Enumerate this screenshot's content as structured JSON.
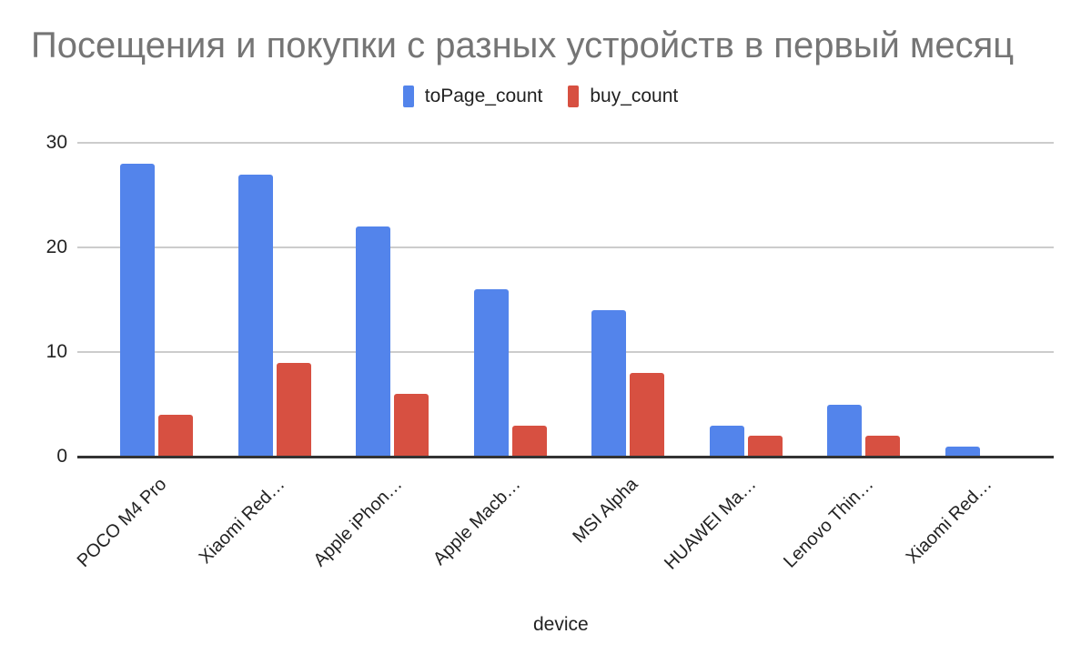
{
  "chart_data": {
    "type": "bar",
    "title": "Посещения и покупки с разных устройств в первый месяц",
    "xlabel": "device",
    "ylabel": "",
    "ylim": [
      0,
      30
    ],
    "yticks": [
      "0",
      "10",
      "20",
      "30"
    ],
    "grid": true,
    "legend_position": "top",
    "categories": [
      "POCO M4 Pro",
      "Xiaomi Red…",
      "Apple iPhon…",
      "Apple Macb…",
      "MSI Alpha",
      "HUAWEI Ma…",
      "Lenovo Thin…",
      "Xiaomi Red…"
    ],
    "series": [
      {
        "name": "toPage_count",
        "color": "#5384EB",
        "values": [
          28,
          27,
          22,
          16,
          14,
          3,
          5,
          1
        ]
      },
      {
        "name": "buy_count",
        "color": "#D75041",
        "values": [
          4,
          9,
          6,
          3,
          8,
          2,
          2,
          0
        ]
      }
    ]
  }
}
